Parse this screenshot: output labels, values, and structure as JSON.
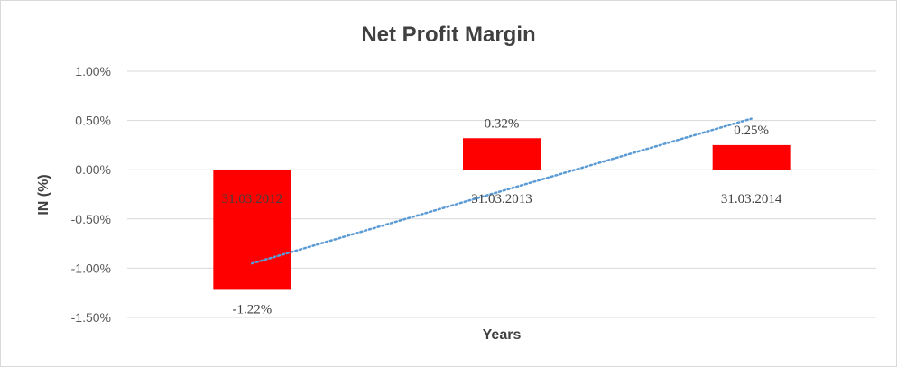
{
  "chart_data": {
    "type": "bar",
    "title": "Net Profit Margin",
    "xlabel": "Years",
    "ylabel": "IN (%)",
    "categories": [
      "31.03.2012",
      "31.03.2013",
      "31.03.2014"
    ],
    "series": [
      {
        "values": [
          -1.22,
          0.32,
          0.25
        ],
        "data_labels": [
          "-1.22%",
          "0.32%",
          "0.25%"
        ],
        "color": "#ff0000"
      }
    ],
    "trendline": {
      "type": "linear",
      "style": "dotted",
      "color": "#5b9bd5"
    },
    "ylim": [
      -1.5,
      1.0
    ],
    "yticks": [
      1.0,
      0.5,
      0.0,
      -0.5,
      -1.0,
      -1.5
    ],
    "ytick_labels": [
      "1.00%",
      "0.50%",
      "0.00%",
      "-0.50%",
      "-1.00%",
      "-1.50%"
    ],
    "grid": true,
    "legend": "none"
  }
}
